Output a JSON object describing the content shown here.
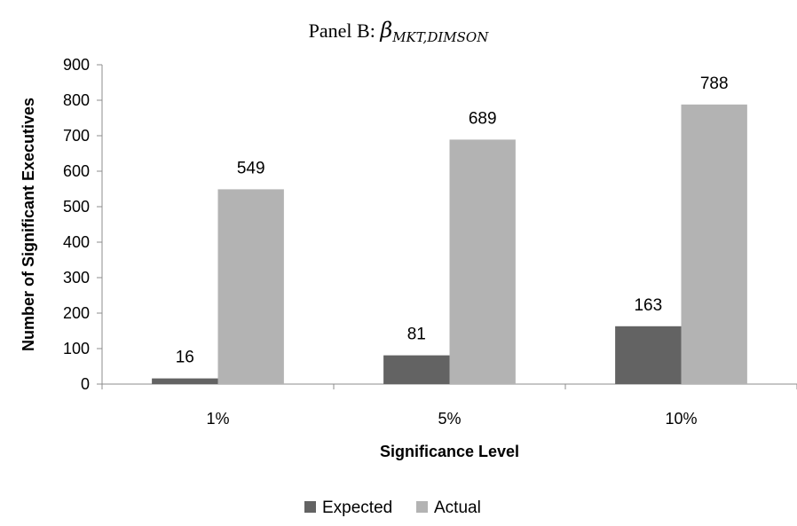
{
  "chart_data": {
    "type": "bar",
    "title": {
      "prefix": "Panel B: ",
      "symbol": "β",
      "subscript": "MKT,DIMSON"
    },
    "xlabel": "Significance Level",
    "ylabel": "Number of Significant Executives",
    "categories": [
      "1%",
      "5%",
      "10%"
    ],
    "ylim": [
      0,
      900
    ],
    "yticks": [
      0,
      100,
      200,
      300,
      400,
      500,
      600,
      700,
      800,
      900
    ],
    "grid": false,
    "legend_position": "bottom",
    "series": [
      {
        "name": "Expected",
        "color": "#636363",
        "values": [
          16,
          81,
          163
        ]
      },
      {
        "name": "Actual",
        "color": "#b3b3b3",
        "values": [
          549,
          689,
          788
        ]
      }
    ]
  }
}
